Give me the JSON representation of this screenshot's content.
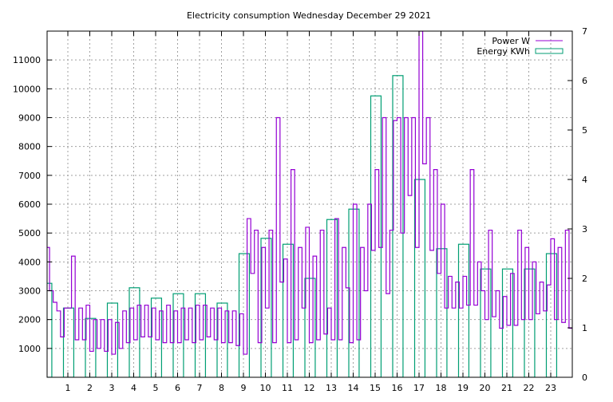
{
  "chart_data": {
    "type": "line",
    "title": "Electricity consumption Wednesday December 29 2021",
    "xlabel": "",
    "ylabel": "",
    "y2label": "",
    "xlim": [
      0,
      24
    ],
    "ylim": [
      0,
      12000
    ],
    "y2lim": [
      0,
      7
    ],
    "grid": true,
    "legend_placement": "top-right",
    "x_ticks": [
      "1",
      "2",
      "3",
      "4",
      "5",
      "6",
      "7",
      "8",
      "9",
      "10",
      "11",
      "12",
      "13",
      "14",
      "15",
      "16",
      "17",
      "18",
      "19",
      "20",
      "21",
      "22",
      "23"
    ],
    "y_ticks": [
      "1000",
      "2000",
      "3000",
      "4000",
      "5000",
      "6000",
      "7000",
      "8000",
      "9000",
      "10000",
      "11000"
    ],
    "y2_ticks": [
      "0",
      "1",
      "2",
      "3",
      "4",
      "5",
      "6",
      "7"
    ],
    "series": [
      {
        "name": "Power W",
        "axis": "left",
        "style": "steps",
        "color": "#9400d3",
        "samples_per_hour": 6,
        "values": [
          4500,
          3000,
          2600,
          2300,
          1400,
          2400,
          2400,
          4200,
          1300,
          2400,
          1300,
          2500,
          900,
          2000,
          1000,
          2000,
          900,
          2000,
          800,
          1900,
          1000,
          2300,
          1200,
          2400,
          1300,
          2500,
          1400,
          2500,
          1400,
          2400,
          1300,
          2300,
          1200,
          2500,
          1200,
          2300,
          1200,
          2400,
          1300,
          2400,
          1200,
          2500,
          1300,
          2500,
          1400,
          2400,
          1300,
          2400,
          1200,
          2300,
          1200,
          2300,
          1100,
          2200,
          800,
          5500,
          3600,
          5100,
          1200,
          4500,
          2400,
          5100,
          1200,
          9000,
          3300,
          4100,
          1200,
          7200,
          1300,
          4500,
          2400,
          5200,
          1200,
          4200,
          1300,
          5100,
          1500,
          2400,
          1300,
          5500,
          1300,
          4500,
          3100,
          1200,
          6000,
          1300,
          4500,
          3000,
          6000,
          4400,
          7200,
          4500,
          9000,
          2900,
          5100,
          8900,
          9000,
          5000,
          9000,
          6300,
          9000,
          4500,
          12000,
          7400,
          9000,
          4400,
          7200,
          3600,
          6000,
          2400,
          3500,
          2400,
          3300,
          2400,
          3500,
          2500,
          7200,
          2500,
          4000,
          3000,
          2000,
          5100,
          2100,
          3000,
          1700,
          2800,
          1800,
          3600,
          1800,
          5100,
          2000,
          4500,
          2000,
          4000,
          2200,
          3300,
          2300,
          3200,
          4800,
          2000,
          4500,
          1900,
          5100,
          1700
        ]
      },
      {
        "name": "Energy KWh",
        "axis": "right",
        "style": "boxes",
        "color": "#009e73",
        "x": [
          0,
          1,
          2,
          3,
          4,
          5,
          6,
          7,
          8,
          9,
          10,
          11,
          12,
          13,
          14,
          15,
          16,
          17,
          18,
          19,
          20,
          21,
          22,
          23
        ],
        "values": [
          1.9,
          1.4,
          1.19,
          1.5,
          1.81,
          1.6,
          1.69,
          1.69,
          1.5,
          2.5,
          2.81,
          2.69,
          2.0,
          3.19,
          3.4,
          5.69,
          6.1,
          4.0,
          2.6,
          2.69,
          2.19,
          2.19,
          2.19,
          2.5
        ]
      }
    ]
  }
}
